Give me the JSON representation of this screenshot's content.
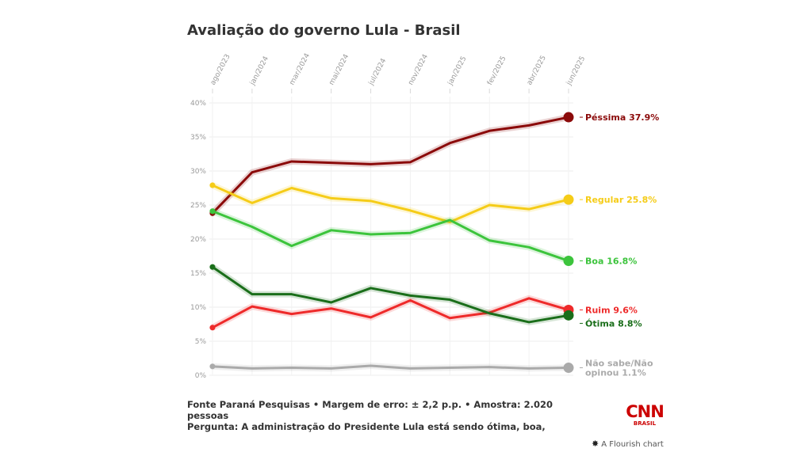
{
  "chart_data": {
    "type": "line",
    "title": "Avaliação do governo Lula - Brasil",
    "x_ticks": [
      "ago/2023",
      "jan/2024",
      "mar/2024",
      "mai/2024",
      "jul/2024",
      "nov/2024",
      "jan/2025",
      "fev/2025",
      "abr/2025",
      "jun/2025"
    ],
    "y_ticks": [
      "0%",
      "5%",
      "10%",
      "15%",
      "20%",
      "25%",
      "30%",
      "35%",
      "40%"
    ],
    "ylim": [
      0,
      40
    ],
    "grid": true,
    "series": [
      {
        "name": "Péssima",
        "color": "#8b0a0a",
        "end_label": "Péssima 37.9%",
        "values": [
          23.8,
          29.8,
          31.4,
          31.2,
          31.0,
          31.3,
          34.1,
          35.9,
          36.7,
          37.9
        ]
      },
      {
        "name": "Regular",
        "color": "#f5cc18",
        "end_label": "Regular 25.8%",
        "values": [
          27.9,
          25.3,
          27.5,
          26.0,
          25.6,
          24.2,
          22.5,
          25.0,
          24.4,
          25.8
        ]
      },
      {
        "name": "Boa",
        "color": "#3cc43c",
        "end_label": "Boa 16.8%",
        "values": [
          24.1,
          21.8,
          19.0,
          21.3,
          20.7,
          20.9,
          22.8,
          19.8,
          18.8,
          16.8
        ]
      },
      {
        "name": "Ruim",
        "color": "#ee2a2a",
        "end_label": "Ruim 9.6%",
        "values": [
          7.0,
          10.1,
          9.0,
          9.8,
          8.5,
          11.0,
          8.4,
          9.2,
          11.3,
          9.6
        ]
      },
      {
        "name": "Ótima",
        "color": "#1a6e1a",
        "end_label": "Ótima 8.8%",
        "values": [
          15.9,
          11.9,
          11.9,
          10.7,
          12.8,
          11.7,
          11.1,
          9.1,
          7.8,
          8.8
        ]
      },
      {
        "name": "Não sabe/Não opinou",
        "color": "#aaaaaa",
        "end_label": [
          "Não sabe/Não",
          "opinou 1.1%"
        ],
        "values": [
          1.3,
          1.0,
          1.1,
          1.0,
          1.4,
          1.0,
          1.1,
          1.2,
          1.0,
          1.1
        ]
      }
    ]
  },
  "footnote": {
    "line1": "Fonte Paraná Pesquisas • Margem de erro: ± 2,2 p.p. • Amostra: 2.020 pessoas",
    "line2": "Pergunta: A administração do Presidente Lula está sendo ótima, boa, regular, ruim ou péssima?"
  },
  "logo": {
    "mark": "CNN",
    "sub": "BRASIL"
  },
  "credit": {
    "icon": "flourish-icon",
    "text": "A Flourish chart"
  }
}
